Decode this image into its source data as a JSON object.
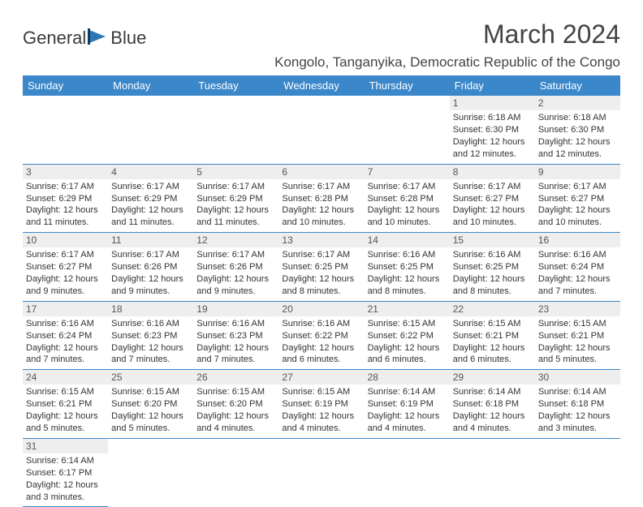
{
  "logo": {
    "text1": "General",
    "text2": "Blue"
  },
  "title": "March 2024",
  "location": "Kongolo, Tanganyika, Democratic Republic of the Congo",
  "colors": {
    "header_bg": "#3a87c9",
    "header_fg": "#ffffff",
    "daynum_bg": "#eeeeee",
    "border": "#3a87c9",
    "text": "#333333"
  },
  "day_headers": [
    "Sunday",
    "Monday",
    "Tuesday",
    "Wednesday",
    "Thursday",
    "Friday",
    "Saturday"
  ],
  "weeks": [
    [
      null,
      null,
      null,
      null,
      null,
      {
        "n": "1",
        "sr": "Sunrise: 6:18 AM",
        "ss": "Sunset: 6:30 PM",
        "dl": "Daylight: 12 hours and 12 minutes."
      },
      {
        "n": "2",
        "sr": "Sunrise: 6:18 AM",
        "ss": "Sunset: 6:30 PM",
        "dl": "Daylight: 12 hours and 12 minutes."
      }
    ],
    [
      {
        "n": "3",
        "sr": "Sunrise: 6:17 AM",
        "ss": "Sunset: 6:29 PM",
        "dl": "Daylight: 12 hours and 11 minutes."
      },
      {
        "n": "4",
        "sr": "Sunrise: 6:17 AM",
        "ss": "Sunset: 6:29 PM",
        "dl": "Daylight: 12 hours and 11 minutes."
      },
      {
        "n": "5",
        "sr": "Sunrise: 6:17 AM",
        "ss": "Sunset: 6:29 PM",
        "dl": "Daylight: 12 hours and 11 minutes."
      },
      {
        "n": "6",
        "sr": "Sunrise: 6:17 AM",
        "ss": "Sunset: 6:28 PM",
        "dl": "Daylight: 12 hours and 10 minutes."
      },
      {
        "n": "7",
        "sr": "Sunrise: 6:17 AM",
        "ss": "Sunset: 6:28 PM",
        "dl": "Daylight: 12 hours and 10 minutes."
      },
      {
        "n": "8",
        "sr": "Sunrise: 6:17 AM",
        "ss": "Sunset: 6:27 PM",
        "dl": "Daylight: 12 hours and 10 minutes."
      },
      {
        "n": "9",
        "sr": "Sunrise: 6:17 AM",
        "ss": "Sunset: 6:27 PM",
        "dl": "Daylight: 12 hours and 10 minutes."
      }
    ],
    [
      {
        "n": "10",
        "sr": "Sunrise: 6:17 AM",
        "ss": "Sunset: 6:27 PM",
        "dl": "Daylight: 12 hours and 9 minutes."
      },
      {
        "n": "11",
        "sr": "Sunrise: 6:17 AM",
        "ss": "Sunset: 6:26 PM",
        "dl": "Daylight: 12 hours and 9 minutes."
      },
      {
        "n": "12",
        "sr": "Sunrise: 6:17 AM",
        "ss": "Sunset: 6:26 PM",
        "dl": "Daylight: 12 hours and 9 minutes."
      },
      {
        "n": "13",
        "sr": "Sunrise: 6:17 AM",
        "ss": "Sunset: 6:25 PM",
        "dl": "Daylight: 12 hours and 8 minutes."
      },
      {
        "n": "14",
        "sr": "Sunrise: 6:16 AM",
        "ss": "Sunset: 6:25 PM",
        "dl": "Daylight: 12 hours and 8 minutes."
      },
      {
        "n": "15",
        "sr": "Sunrise: 6:16 AM",
        "ss": "Sunset: 6:25 PM",
        "dl": "Daylight: 12 hours and 8 minutes."
      },
      {
        "n": "16",
        "sr": "Sunrise: 6:16 AM",
        "ss": "Sunset: 6:24 PM",
        "dl": "Daylight: 12 hours and 7 minutes."
      }
    ],
    [
      {
        "n": "17",
        "sr": "Sunrise: 6:16 AM",
        "ss": "Sunset: 6:24 PM",
        "dl": "Daylight: 12 hours and 7 minutes."
      },
      {
        "n": "18",
        "sr": "Sunrise: 6:16 AM",
        "ss": "Sunset: 6:23 PM",
        "dl": "Daylight: 12 hours and 7 minutes."
      },
      {
        "n": "19",
        "sr": "Sunrise: 6:16 AM",
        "ss": "Sunset: 6:23 PM",
        "dl": "Daylight: 12 hours and 7 minutes."
      },
      {
        "n": "20",
        "sr": "Sunrise: 6:16 AM",
        "ss": "Sunset: 6:22 PM",
        "dl": "Daylight: 12 hours and 6 minutes."
      },
      {
        "n": "21",
        "sr": "Sunrise: 6:15 AM",
        "ss": "Sunset: 6:22 PM",
        "dl": "Daylight: 12 hours and 6 minutes."
      },
      {
        "n": "22",
        "sr": "Sunrise: 6:15 AM",
        "ss": "Sunset: 6:21 PM",
        "dl": "Daylight: 12 hours and 6 minutes."
      },
      {
        "n": "23",
        "sr": "Sunrise: 6:15 AM",
        "ss": "Sunset: 6:21 PM",
        "dl": "Daylight: 12 hours and 5 minutes."
      }
    ],
    [
      {
        "n": "24",
        "sr": "Sunrise: 6:15 AM",
        "ss": "Sunset: 6:21 PM",
        "dl": "Daylight: 12 hours and 5 minutes."
      },
      {
        "n": "25",
        "sr": "Sunrise: 6:15 AM",
        "ss": "Sunset: 6:20 PM",
        "dl": "Daylight: 12 hours and 5 minutes."
      },
      {
        "n": "26",
        "sr": "Sunrise: 6:15 AM",
        "ss": "Sunset: 6:20 PM",
        "dl": "Daylight: 12 hours and 4 minutes."
      },
      {
        "n": "27",
        "sr": "Sunrise: 6:15 AM",
        "ss": "Sunset: 6:19 PM",
        "dl": "Daylight: 12 hours and 4 minutes."
      },
      {
        "n": "28",
        "sr": "Sunrise: 6:14 AM",
        "ss": "Sunset: 6:19 PM",
        "dl": "Daylight: 12 hours and 4 minutes."
      },
      {
        "n": "29",
        "sr": "Sunrise: 6:14 AM",
        "ss": "Sunset: 6:18 PM",
        "dl": "Daylight: 12 hours and 4 minutes."
      },
      {
        "n": "30",
        "sr": "Sunrise: 6:14 AM",
        "ss": "Sunset: 6:18 PM",
        "dl": "Daylight: 12 hours and 3 minutes."
      }
    ],
    [
      {
        "n": "31",
        "sr": "Sunrise: 6:14 AM",
        "ss": "Sunset: 6:17 PM",
        "dl": "Daylight: 12 hours and 3 minutes."
      },
      null,
      null,
      null,
      null,
      null,
      null
    ]
  ]
}
